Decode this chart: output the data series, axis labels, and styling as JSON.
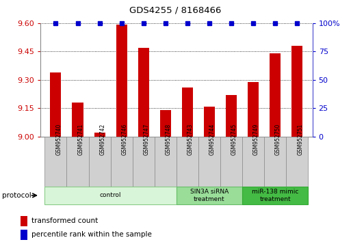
{
  "title": "GDS4255 / 8168466",
  "samples": [
    "GSM952740",
    "GSM952741",
    "GSM952742",
    "GSM952746",
    "GSM952747",
    "GSM952748",
    "GSM952743",
    "GSM952744",
    "GSM952745",
    "GSM952749",
    "GSM952750",
    "GSM952751"
  ],
  "red_values": [
    9.34,
    9.18,
    9.02,
    9.59,
    9.47,
    9.14,
    9.26,
    9.16,
    9.22,
    9.29,
    9.44,
    9.48
  ],
  "blue_values": [
    100,
    100,
    100,
    100,
    100,
    100,
    100,
    100,
    100,
    100,
    100,
    100
  ],
  "ylim_left": [
    9.0,
    9.6
  ],
  "ylim_right": [
    0,
    100
  ],
  "yticks_left": [
    9.0,
    9.15,
    9.3,
    9.45,
    9.6
  ],
  "yticks_right": [
    0,
    25,
    50,
    75,
    100
  ],
  "red_color": "#cc0000",
  "blue_color": "#0000cc",
  "bar_width": 0.5,
  "groups": [
    {
      "label": "control",
      "start": 0,
      "end": 6,
      "color": "#d9f5d9",
      "edge_color": "#88cc88"
    },
    {
      "label": "SIN3A siRNA\ntreatment",
      "start": 6,
      "end": 9,
      "color": "#99dd99",
      "edge_color": "#66bb66"
    },
    {
      "label": "miR-138 mimic\ntreatment",
      "start": 9,
      "end": 12,
      "color": "#44bb44",
      "edge_color": "#33aa33"
    }
  ],
  "legend_red": "transformed count",
  "legend_blue": "percentile rank within the sample",
  "protocol_label": "protocol",
  "background_color": "#ffffff",
  "tick_label_color_left": "#cc0000",
  "tick_label_color_right": "#0000cc",
  "sample_box_color": "#d0d0d0",
  "sample_box_edge": "#888888"
}
